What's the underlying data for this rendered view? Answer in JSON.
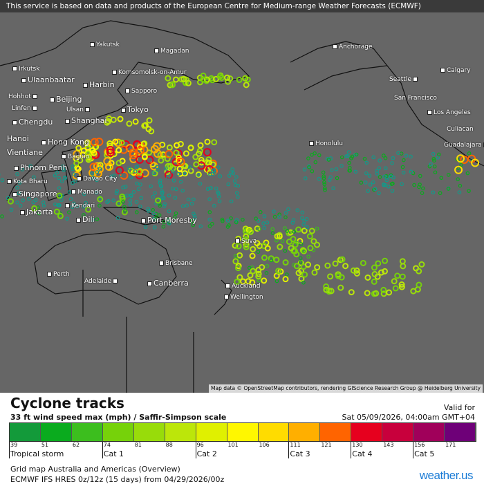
{
  "banner": "This service is based on data and products of the European Centre for Medium-range Weather Forecasts (ECMWF)",
  "attribution": "Map data © OpenStreetMap contributors, rendering GIScience Research Group @ Heidelberg University",
  "cities": [
    {
      "name": "Yakutsk"
    },
    {
      "name": "Magadan"
    },
    {
      "name": "Anchorage"
    },
    {
      "name": "Irkutsk"
    },
    {
      "name": "Ulaanbaatar"
    },
    {
      "name": "Komsomolsk-on-Amur"
    },
    {
      "name": "Harbin"
    },
    {
      "name": "Sapporo"
    },
    {
      "name": "Hohhot"
    },
    {
      "name": "Beijing"
    },
    {
      "name": "Linfen"
    },
    {
      "name": "Ulsan"
    },
    {
      "name": "Tokyo"
    },
    {
      "name": "Shanghai"
    },
    {
      "name": "Chengdu"
    },
    {
      "name": "Hanoi"
    },
    {
      "name": "Vientiane"
    },
    {
      "name": "Hong Kong"
    },
    {
      "name": "Baguio"
    },
    {
      "name": "Phnom Penh"
    },
    {
      "name": "Davao City"
    },
    {
      "name": "Kota Bharu"
    },
    {
      "name": "Manado"
    },
    {
      "name": "Singapore"
    },
    {
      "name": "Kendari"
    },
    {
      "name": "Jakarta"
    },
    {
      "name": "Dili"
    },
    {
      "name": "Port Moresby"
    },
    {
      "name": "Suva"
    },
    {
      "name": "Brisbane"
    },
    {
      "name": "Perth"
    },
    {
      "name": "Adelaide"
    },
    {
      "name": "Canberra"
    },
    {
      "name": "Auckland"
    },
    {
      "name": "Wellington"
    },
    {
      "name": "Honolulu"
    },
    {
      "name": "Seattle"
    },
    {
      "name": "Calgary"
    },
    {
      "name": "San Francisco"
    },
    {
      "name": "Los Angeles"
    },
    {
      "name": "Culiacan"
    },
    {
      "name": "Guadalajara"
    }
  ],
  "legend": {
    "title": "Cyclone tracks",
    "subtitle": "33 ft wind speed max (mph) / Saffir-Simpson scale",
    "valid_label": "Valid for",
    "valid_time": "Sat 05/09/2026, 04:00am GMT+04",
    "colors": [
      "#139a3a",
      "#0aab1e",
      "#3cbe1e",
      "#76d20a",
      "#98dc0a",
      "#bce60a",
      "#e0f000",
      "#fff700",
      "#ffdc00",
      "#ffaf00",
      "#ff6400",
      "#e6001e",
      "#c8003c",
      "#a0005a",
      "#6e0078"
    ],
    "ticks": [
      "39",
      "51",
      "62",
      "74",
      "81",
      "88",
      "96",
      "101",
      "106",
      "111",
      "121",
      "130",
      "143",
      "156",
      "171"
    ],
    "categories": [
      "Tropical storm",
      "Cat 1",
      "Cat 2",
      "Cat 3",
      "Cat 4",
      "Cat 5"
    ],
    "grid": "Grid map Australia and Americas (Overview)",
    "model": "ECMWF IFS HRES 0z/12z (15 days) from  04/29/2026/00z",
    "logo": "weather.us"
  }
}
